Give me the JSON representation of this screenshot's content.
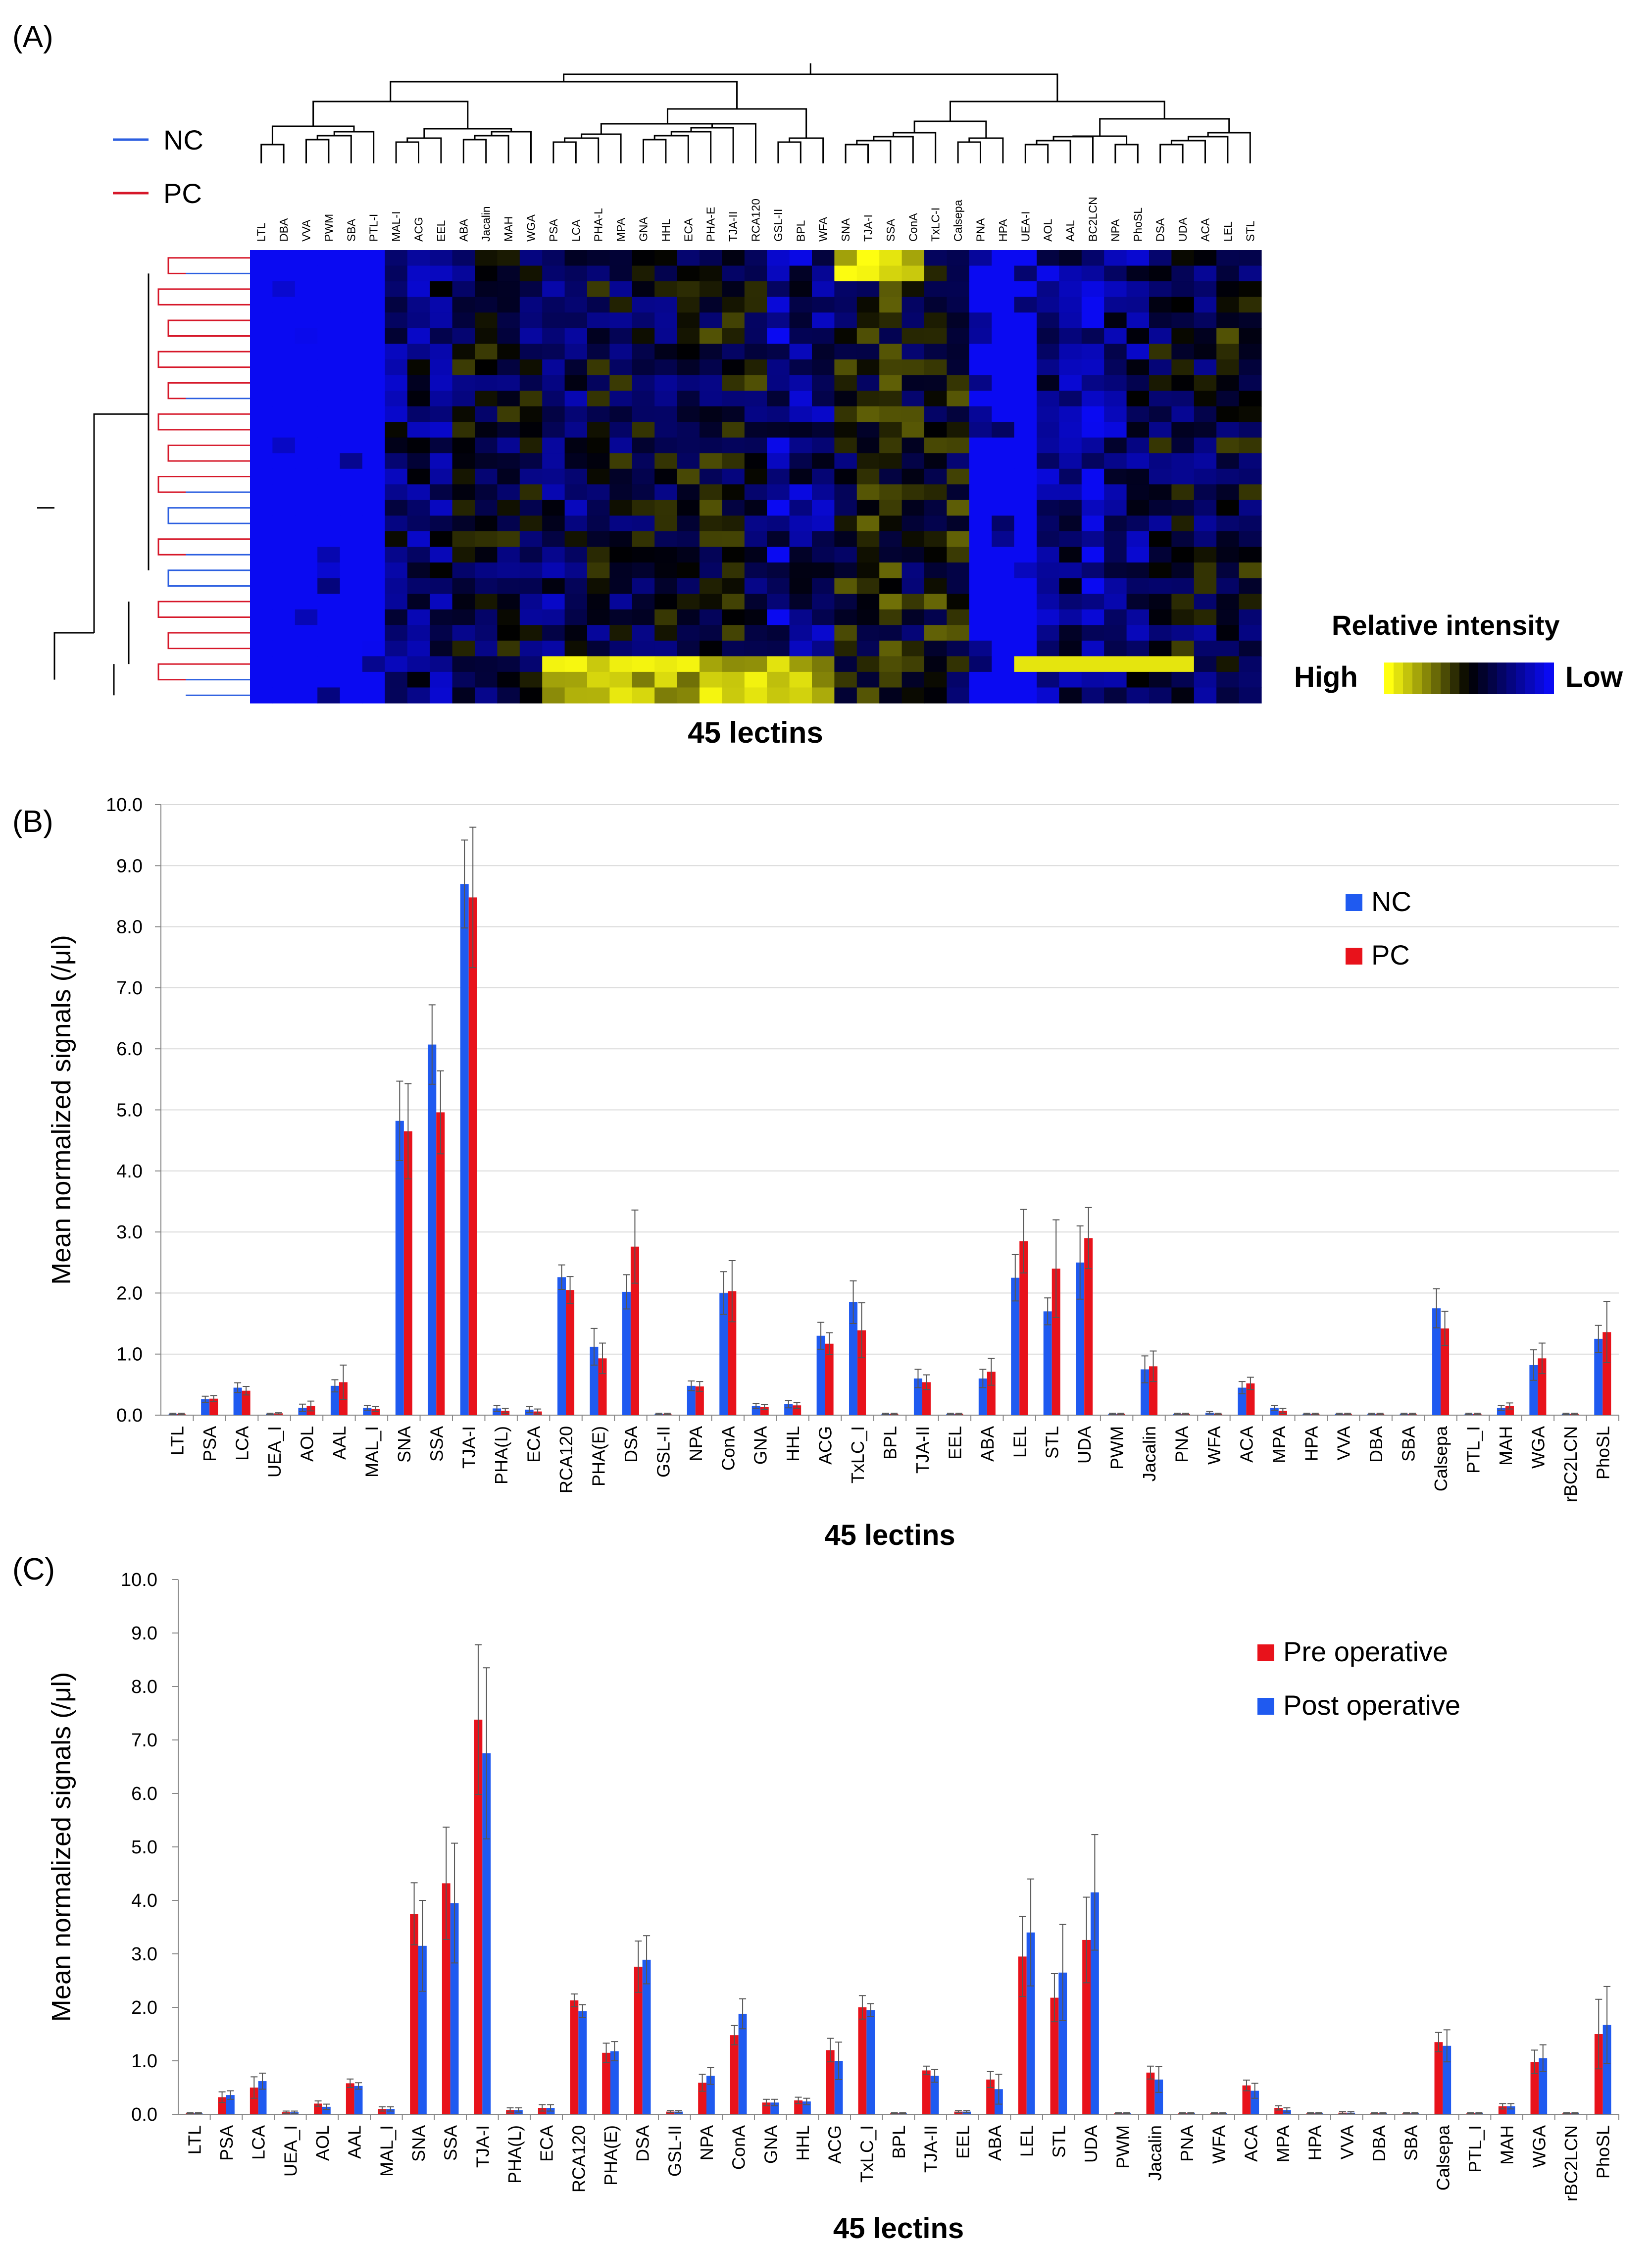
{
  "panel_labels": [
    "(A)",
    "(B)",
    "(C)"
  ],
  "colors": {
    "nc": "#1F5AF0",
    "pc": "#E8121B",
    "heat_high": "#FFFF10",
    "heat_mid": "#000000",
    "heat_low": "#0A0AF2",
    "dendro_nc": "#2C5FE0",
    "dendro_pc": "#D6182A",
    "axis": "#888888",
    "grid": "#D9D9D9"
  },
  "chart_data": [
    {
      "type": "heatmap",
      "panel": "(A)",
      "title": "",
      "xlabel": "45 lectins",
      "legend": {
        "items": [
          {
            "name": "NC",
            "color": "#2C5FE0"
          },
          {
            "name": "PC",
            "color": "#D6182A"
          }
        ],
        "placement": "top-left"
      },
      "colorbar": {
        "title": "Relative intensity",
        "high": "High",
        "low": "Low",
        "placement": "bottom-right"
      },
      "columns": [
        "LTL",
        "DBA",
        "VVA",
        "PWM",
        "SBA",
        "PTL-I",
        "MAL-I",
        "ACG",
        "EEL",
        "ABA",
        "Jacalin",
        "MAH",
        "WGA",
        "PSA",
        "LCA",
        "PHA-L",
        "MPA",
        "GNA",
        "HHL",
        "ECA",
        "PHA-E",
        "TJA-II",
        "RCA120",
        "GSL-II",
        "BPL",
        "WFA",
        "SNA",
        "TJA-I",
        "SSA",
        "ConA",
        "TxLC-I",
        "Calsepa",
        "PNA",
        "HPA",
        "UEA-I",
        "AOL",
        "AAL",
        "BC2LCN",
        "NPA",
        "PhoSL",
        "DSA",
        "UDA",
        "ACA",
        "LEL",
        "STL"
      ],
      "row_groups": [
        "PC",
        "NC",
        "PC",
        "PC",
        "PC",
        "PC",
        "PC",
        "PC",
        "PC",
        "NC",
        "PC",
        "PC",
        "PC",
        "PC",
        "PC",
        "NC",
        "NC",
        "NC",
        "PC",
        "NC",
        "NC",
        "NC",
        "PC",
        "PC",
        "PC",
        "PC",
        "PC",
        "NC",
        "NC"
      ],
      "intensity_scale": "0 = Low (blue), 0.5 = mid (black), 1 = High (yellow)"
    },
    {
      "type": "bar",
      "panel": "(B)",
      "title": "",
      "xlabel": "45 lectins",
      "ylabel": "Mean normalized signals (/μl)",
      "ylim": [
        0,
        10
      ],
      "yticks": [
        "0.0",
        "1.0",
        "2.0",
        "3.0",
        "4.0",
        "5.0",
        "6.0",
        "7.0",
        "8.0",
        "9.0",
        "10.0"
      ],
      "grid": true,
      "legend_placement": "top-right",
      "categories": [
        "LTL",
        "PSA",
        "LCA",
        "UEA_I",
        "AOL",
        "AAL",
        "MAL_I",
        "SNA",
        "SSA",
        "TJA-I",
        "PHA(L)",
        "ECA",
        "RCA120",
        "PHA(E)",
        "DSA",
        "GSL-II",
        "NPA",
        "ConA",
        "GNA",
        "HHL",
        "ACG",
        "TxLC_I",
        "BPL",
        "TJA-II",
        "EEL",
        "ABA",
        "LEL",
        "STL",
        "UDA",
        "PWM",
        "Jacalin",
        "PNA",
        "WFA",
        "ACA",
        "MPA",
        "HPA",
        "VVA",
        "DBA",
        "SBA",
        "Calsepa",
        "PTL_I",
        "MAH",
        "WGA",
        "rBC2LCN",
        "PhoSL"
      ],
      "series": [
        {
          "name": "NC",
          "color": "#1F5AF0",
          "values": [
            0.02,
            0.26,
            0.45,
            0.02,
            0.12,
            0.48,
            0.12,
            4.82,
            6.07,
            8.7,
            0.11,
            0.09,
            2.26,
            1.12,
            2.02,
            0.02,
            0.48,
            2.0,
            0.15,
            0.18,
            1.3,
            1.85,
            0.02,
            0.6,
            0.02,
            0.6,
            2.25,
            1.7,
            2.5,
            0.02,
            0.75,
            0.02,
            0.04,
            0.45,
            0.12,
            0.02,
            0.02,
            0.02,
            0.02,
            1.75,
            0.02,
            0.12,
            0.82,
            0.02,
            1.25
          ],
          "errors": [
            0.01,
            0.05,
            0.08,
            0.01,
            0.06,
            0.1,
            0.04,
            0.65,
            0.65,
            0.72,
            0.05,
            0.05,
            0.2,
            0.3,
            0.28,
            0.01,
            0.08,
            0.35,
            0.04,
            0.06,
            0.22,
            0.35,
            0.01,
            0.15,
            0.01,
            0.15,
            0.38,
            0.22,
            0.6,
            0.01,
            0.22,
            0.01,
            0.02,
            0.1,
            0.04,
            0.01,
            0.01,
            0.01,
            0.01,
            0.32,
            0.01,
            0.04,
            0.25,
            0.01,
            0.22
          ]
        },
        {
          "name": "PC",
          "color": "#E8121B",
          "values": [
            0.02,
            0.27,
            0.4,
            0.03,
            0.15,
            0.54,
            0.1,
            4.65,
            4.96,
            8.48,
            0.07,
            0.06,
            2.05,
            0.93,
            2.76,
            0.02,
            0.47,
            2.03,
            0.13,
            0.16,
            1.17,
            1.39,
            0.02,
            0.54,
            0.02,
            0.71,
            2.85,
            2.4,
            2.9,
            0.02,
            0.8,
            0.02,
            0.02,
            0.52,
            0.07,
            0.02,
            0.02,
            0.02,
            0.02,
            1.42,
            0.02,
            0.15,
            0.93,
            0.02,
            1.36
          ],
          "errors": [
            0.01,
            0.05,
            0.07,
            0.01,
            0.08,
            0.28,
            0.04,
            0.78,
            0.68,
            1.15,
            0.04,
            0.04,
            0.22,
            0.25,
            0.6,
            0.01,
            0.08,
            0.5,
            0.04,
            0.05,
            0.18,
            0.45,
            0.01,
            0.12,
            0.01,
            0.22,
            0.52,
            0.8,
            0.5,
            0.01,
            0.25,
            0.01,
            0.01,
            0.1,
            0.04,
            0.01,
            0.01,
            0.01,
            0.01,
            0.28,
            0.01,
            0.05,
            0.25,
            0.01,
            0.5
          ]
        }
      ]
    },
    {
      "type": "bar",
      "panel": "(C)",
      "title": "",
      "xlabel": "45 lectins",
      "ylabel": "Mean normalized signals (/μl)",
      "ylim": [
        0,
        10
      ],
      "yticks": [
        "0.0",
        "1.0",
        "2.0",
        "3.0",
        "4.0",
        "5.0",
        "6.0",
        "7.0",
        "8.0",
        "9.0",
        "10.0"
      ],
      "grid": false,
      "legend_placement": "top-right",
      "categories": [
        "LTL",
        "PSA",
        "LCA",
        "UEA_I",
        "AOL",
        "AAL",
        "MAL_I",
        "SNA",
        "SSA",
        "TJA-I",
        "PHA(L)",
        "ECA",
        "RCA120",
        "PHA(E)",
        "DSA",
        "GSL-II",
        "NPA",
        "ConA",
        "GNA",
        "HHL",
        "ACG",
        "TxLC_I",
        "BPL",
        "TJA-II",
        "EEL",
        "ABA",
        "LEL",
        "STL",
        "UDA",
        "PWM",
        "Jacalin",
        "PNA",
        "WFA",
        "ACA",
        "MPA",
        "HPA",
        "VVA",
        "DBA",
        "SBA",
        "Calsepa",
        "PTL_I",
        "MAH",
        "WGA",
        "rBC2LCN",
        "PhoSL"
      ],
      "series": [
        {
          "name": "Pre operative",
          "color": "#E8121B",
          "values": [
            0.02,
            0.32,
            0.5,
            0.04,
            0.2,
            0.58,
            0.1,
            3.75,
            4.32,
            7.38,
            0.08,
            0.12,
            2.13,
            1.15,
            2.76,
            0.05,
            0.59,
            1.48,
            0.22,
            0.26,
            1.2,
            2.0,
            0.02,
            0.82,
            0.05,
            0.65,
            2.95,
            2.18,
            3.26,
            0.02,
            0.78,
            0.02,
            0.02,
            0.54,
            0.12,
            0.02,
            0.03,
            0.02,
            0.02,
            1.35,
            0.02,
            0.15,
            0.98,
            0.02,
            1.5
          ],
          "errors": [
            0.01,
            0.1,
            0.2,
            0.02,
            0.05,
            0.08,
            0.04,
            0.58,
            1.05,
            1.4,
            0.04,
            0.06,
            0.12,
            0.18,
            0.48,
            0.02,
            0.16,
            0.18,
            0.06,
            0.06,
            0.22,
            0.22,
            0.01,
            0.08,
            0.02,
            0.15,
            0.75,
            0.45,
            0.8,
            0.01,
            0.12,
            0.01,
            0.01,
            0.1,
            0.04,
            0.01,
            0.02,
            0.01,
            0.01,
            0.18,
            0.01,
            0.05,
            0.22,
            0.01,
            0.65
          ]
        },
        {
          "name": "Post operative",
          "color": "#1F5AF0",
          "values": [
            0.02,
            0.36,
            0.62,
            0.04,
            0.14,
            0.53,
            0.1,
            3.15,
            3.95,
            6.75,
            0.08,
            0.12,
            1.93,
            1.18,
            2.89,
            0.05,
            0.72,
            1.88,
            0.22,
            0.24,
            1.0,
            1.95,
            0.02,
            0.72,
            0.05,
            0.47,
            3.4,
            2.65,
            4.15,
            0.02,
            0.65,
            0.02,
            0.02,
            0.44,
            0.08,
            0.02,
            0.03,
            0.02,
            0.02,
            1.28,
            0.02,
            0.15,
            1.05,
            0.02,
            1.67
          ],
          "errors": [
            0.01,
            0.08,
            0.15,
            0.02,
            0.05,
            0.06,
            0.04,
            0.85,
            1.12,
            1.6,
            0.04,
            0.06,
            0.12,
            0.18,
            0.45,
            0.02,
            0.16,
            0.28,
            0.06,
            0.06,
            0.35,
            0.12,
            0.01,
            0.12,
            0.02,
            0.28,
            1.0,
            0.9,
            1.08,
            0.01,
            0.24,
            0.01,
            0.01,
            0.14,
            0.04,
            0.01,
            0.02,
            0.01,
            0.01,
            0.3,
            0.01,
            0.05,
            0.25,
            0.01,
            0.72
          ]
        }
      ]
    }
  ]
}
